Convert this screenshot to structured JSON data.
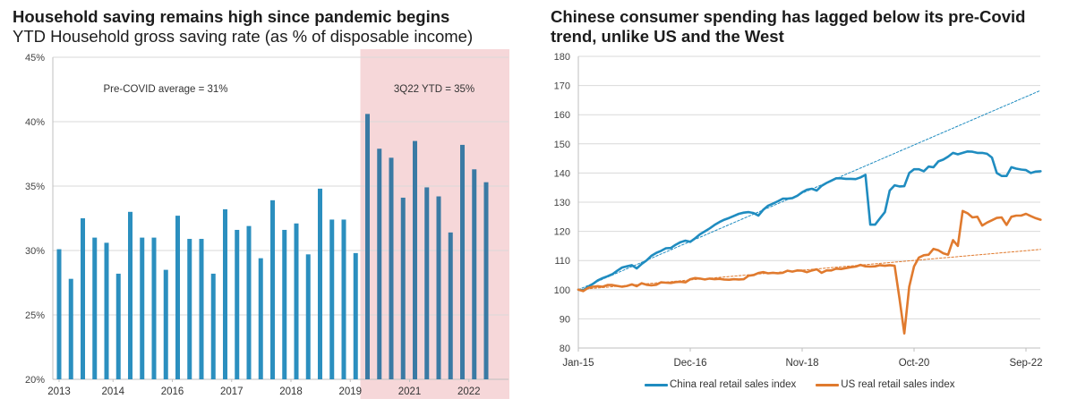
{
  "left": {
    "title": "Household saving remains high since pandemic begins",
    "subtitle": "YTD Household gross saving rate (as % of disposable income)"
  },
  "right": {
    "title_line1": "Chinese consumer spending has lagged below its pre-Covid",
    "title_line2": "trend, unlike US and the West"
  },
  "colors": {
    "bar_pre": "#2b8fbf",
    "bar_post": "#3a7aa4",
    "highlight": "#f6d7d9",
    "china": "#1f8cc0",
    "us": "#e07a2e",
    "grid": "#d9d9d9",
    "axis": "#bfbfbf"
  },
  "chart_data": [
    {
      "type": "bar",
      "title": "Household saving remains high since pandemic begins",
      "subtitle": "YTD Household gross saving rate (as % of disposable income)",
      "xlabel": "",
      "ylabel": "",
      "ylim": [
        20,
        45
      ],
      "yticks": [
        20,
        25,
        30,
        35,
        40,
        45
      ],
      "ytick_labels": [
        "20%",
        "25%",
        "30%",
        "35%",
        "40%",
        "45%"
      ],
      "grid": true,
      "xtick_labels": [
        {
          "label": "2013",
          "index": 0
        },
        {
          "label": "2014",
          "index": 5
        },
        {
          "label": "2016",
          "index": 10
        },
        {
          "label": "2017",
          "index": 15
        },
        {
          "label": "2018",
          "index": 20
        },
        {
          "label": "2019",
          "index": 25
        },
        {
          "label": "2021",
          "index": 30
        },
        {
          "label": "2022",
          "index": 35
        }
      ],
      "values": [
        30.1,
        27.8,
        32.5,
        31.0,
        30.6,
        28.2,
        33.0,
        31.0,
        31.0,
        28.5,
        32.7,
        30.9,
        30.9,
        28.2,
        33.2,
        31.6,
        31.9,
        29.4,
        33.9,
        31.6,
        32.1,
        29.7,
        34.8,
        32.4,
        32.4,
        29.8,
        40.6,
        37.9,
        37.2,
        34.1,
        38.5,
        34.9,
        34.2,
        31.4,
        38.2,
        36.3,
        35.3
      ],
      "highlight_start_index": 26,
      "annotations": [
        {
          "text": "Pre-COVID average = 31%",
          "region": "pre-covid"
        },
        {
          "text": "3Q22 YTD = 35%",
          "region": "highlight"
        }
      ]
    },
    {
      "type": "line",
      "title": "Chinese consumer spending has lagged below its pre-Covid trend, unlike US and the West",
      "xlabel": "",
      "ylabel": "",
      "ylim": [
        80,
        180
      ],
      "yticks": [
        80,
        90,
        100,
        110,
        120,
        130,
        140,
        150,
        160,
        170,
        180
      ],
      "x_months_range": [
        0,
        95
      ],
      "x_start": "Jan-15",
      "xticks": [
        {
          "label": "Jan-15",
          "month": 0
        },
        {
          "label": "Dec-16",
          "month": 23
        },
        {
          "label": "Nov-18",
          "month": 46
        },
        {
          "label": "Oct-20",
          "month": 69
        },
        {
          "label": "Sep-22",
          "month": 92
        }
      ],
      "grid": true,
      "legend_position": "bottom",
      "series": [
        {
          "name": "China real retail sales index",
          "color_key": "china",
          "points": [
            [
              0,
              100
            ],
            [
              1,
              99.8
            ],
            [
              2,
              101
            ],
            [
              3,
              102
            ],
            [
              4,
              103.2
            ],
            [
              5,
              104
            ],
            [
              6,
              104.6
            ],
            [
              7,
              105.3
            ],
            [
              8,
              106.5
            ],
            [
              9,
              107.6
            ],
            [
              10,
              108
            ],
            [
              11,
              108.4
            ],
            [
              12,
              107.3
            ],
            [
              13,
              108.8
            ],
            [
              14,
              110
            ],
            [
              15,
              111.6
            ],
            [
              16,
              112.6
            ],
            [
              17,
              113.3
            ],
            [
              18,
              114.2
            ],
            [
              19,
              114.3
            ],
            [
              20,
              115.4
            ],
            [
              21,
              116.3
            ],
            [
              22,
              116.8
            ],
            [
              23,
              116.4
            ],
            [
              24,
              117.6
            ],
            [
              25,
              119
            ],
            [
              26,
              120
            ],
            [
              27,
              121
            ],
            [
              28,
              122.2
            ],
            [
              29,
              123.2
            ],
            [
              30,
              124
            ],
            [
              31,
              124.6
            ],
            [
              32,
              125.3
            ],
            [
              33,
              126
            ],
            [
              34,
              126.4
            ],
            [
              35,
              126.6
            ],
            [
              36,
              126.3
            ],
            [
              37,
              125.4
            ],
            [
              38,
              127.4
            ],
            [
              39,
              128.8
            ],
            [
              40,
              129.5
            ],
            [
              41,
              130.3
            ],
            [
              42,
              131.2
            ],
            [
              43,
              131.2
            ],
            [
              44,
              131.4
            ],
            [
              45,
              132.2
            ],
            [
              46,
              133.4
            ],
            [
              47,
              134.3
            ],
            [
              48,
              134.6
            ],
            [
              49,
              134
            ],
            [
              50,
              135.6
            ],
            [
              51,
              136.6
            ],
            [
              52,
              137.4
            ],
            [
              53,
              138.2
            ],
            [
              54,
              138.2
            ],
            [
              55,
              138
            ],
            [
              56,
              138
            ],
            [
              57,
              137.9
            ],
            [
              58,
              138.5
            ],
            [
              59,
              139.4
            ],
            [
              60,
              122.3
            ],
            [
              61,
              122.3
            ],
            [
              62,
              124.5
            ],
            [
              63,
              126.6
            ],
            [
              64,
              134
            ],
            [
              65,
              135.8
            ],
            [
              66,
              135.4
            ],
            [
              67,
              135.5
            ],
            [
              68,
              140
            ],
            [
              69,
              141.3
            ],
            [
              70,
              141.3
            ],
            [
              71,
              140.6
            ],
            [
              72,
              142.2
            ],
            [
              73,
              142
            ],
            [
              74,
              144
            ],
            [
              75,
              144.6
            ],
            [
              76,
              145.6
            ],
            [
              77,
              146.9
            ],
            [
              78,
              146.4
            ],
            [
              79,
              146.9
            ],
            [
              80,
              147.4
            ],
            [
              81,
              147.3
            ],
            [
              82,
              146.9
            ],
            [
              83,
              146.9
            ],
            [
              84,
              146.6
            ],
            [
              85,
              145.3
            ],
            [
              86,
              140
            ],
            [
              87,
              139
            ],
            [
              88,
              139
            ],
            [
              89,
              142
            ],
            [
              90,
              141.5
            ],
            [
              91,
              141.2
            ],
            [
              92,
              141
            ],
            [
              93,
              140
            ],
            [
              94,
              140.5
            ],
            [
              95,
              140.6
            ]
          ]
        },
        {
          "name": "US real retail sales index",
          "color_key": "us",
          "points": [
            [
              0,
              100
            ],
            [
              1,
              99.5
            ],
            [
              2,
              100.6
            ],
            [
              3,
              101
            ],
            [
              4,
              101.2
            ],
            [
              5,
              101
            ],
            [
              6,
              101.6
            ],
            [
              7,
              101.6
            ],
            [
              8,
              101.3
            ],
            [
              9,
              101
            ],
            [
              10,
              101.3
            ],
            [
              11,
              101.8
            ],
            [
              12,
              101.2
            ],
            [
              13,
              102.2
            ],
            [
              14,
              101.7
            ],
            [
              15,
              101.5
            ],
            [
              16,
              101.7
            ],
            [
              17,
              102.5
            ],
            [
              18,
              102.4
            ],
            [
              19,
              102.3
            ],
            [
              20,
              102.6
            ],
            [
              21,
              102.7
            ],
            [
              22,
              102.5
            ],
            [
              23,
              103.6
            ],
            [
              24,
              104
            ],
            [
              25,
              103.8
            ],
            [
              26,
              103.5
            ],
            [
              27,
              103.8
            ],
            [
              28,
              103.6
            ],
            [
              29,
              103.7
            ],
            [
              30,
              103.5
            ],
            [
              31,
              103.4
            ],
            [
              32,
              103.6
            ],
            [
              33,
              103.5
            ],
            [
              34,
              103.6
            ],
            [
              35,
              104.8
            ],
            [
              36,
              105
            ],
            [
              37,
              105.7
            ],
            [
              38,
              106
            ],
            [
              39,
              105.6
            ],
            [
              40,
              105.8
            ],
            [
              41,
              105.6
            ],
            [
              42,
              105.8
            ],
            [
              43,
              106.5
            ],
            [
              44,
              106.2
            ],
            [
              45,
              106.6
            ],
            [
              46,
              106.5
            ],
            [
              47,
              106
            ],
            [
              48,
              106.6
            ],
            [
              49,
              107
            ],
            [
              50,
              105.8
            ],
            [
              51,
              106.6
            ],
            [
              52,
              106.6
            ],
            [
              53,
              107.2
            ],
            [
              54,
              107.1
            ],
            [
              55,
              107.4
            ],
            [
              56,
              107.7
            ],
            [
              57,
              107.9
            ],
            [
              58,
              108.5
            ],
            [
              59,
              108
            ],
            [
              60,
              107.9
            ],
            [
              61,
              108
            ],
            [
              62,
              108.4
            ],
            [
              63,
              108.2
            ],
            [
              64,
              108.4
            ],
            [
              65,
              108.2
            ],
            [
              66,
              97
            ],
            [
              67,
              85
            ],
            [
              68,
              101
            ],
            [
              69,
              108
            ],
            [
              70,
              111
            ],
            [
              71,
              111.8
            ],
            [
              72,
              112
            ],
            [
              73,
              114
            ],
            [
              74,
              113.5
            ],
            [
              75,
              112.5
            ],
            [
              76,
              112
            ],
            [
              77,
              117
            ],
            [
              78,
              115
            ],
            [
              79,
              127
            ],
            [
              80,
              126.2
            ],
            [
              81,
              124.8
            ],
            [
              82,
              125
            ],
            [
              83,
              122
            ],
            [
              84,
              123
            ],
            [
              85,
              123.8
            ],
            [
              86,
              124.6
            ],
            [
              87,
              124.8
            ],
            [
              88,
              122.2
            ],
            [
              89,
              125
            ],
            [
              90,
              125.4
            ],
            [
              91,
              125.4
            ],
            [
              92,
              126
            ],
            [
              93,
              125.2
            ],
            [
              94,
              124.5
            ],
            [
              95,
              124
            ]
          ]
        },
        {
          "name": "China pre-Covid trend",
          "style": "dashed",
          "color_key": "china",
          "points": [
            [
              0,
              100
            ],
            [
              95,
              168.3
            ]
          ]
        },
        {
          "name": "US pre-Covid trend",
          "style": "dashed",
          "color_key": "us",
          "points": [
            [
              0,
              100
            ],
            [
              95,
              113.8
            ]
          ]
        }
      ]
    }
  ]
}
